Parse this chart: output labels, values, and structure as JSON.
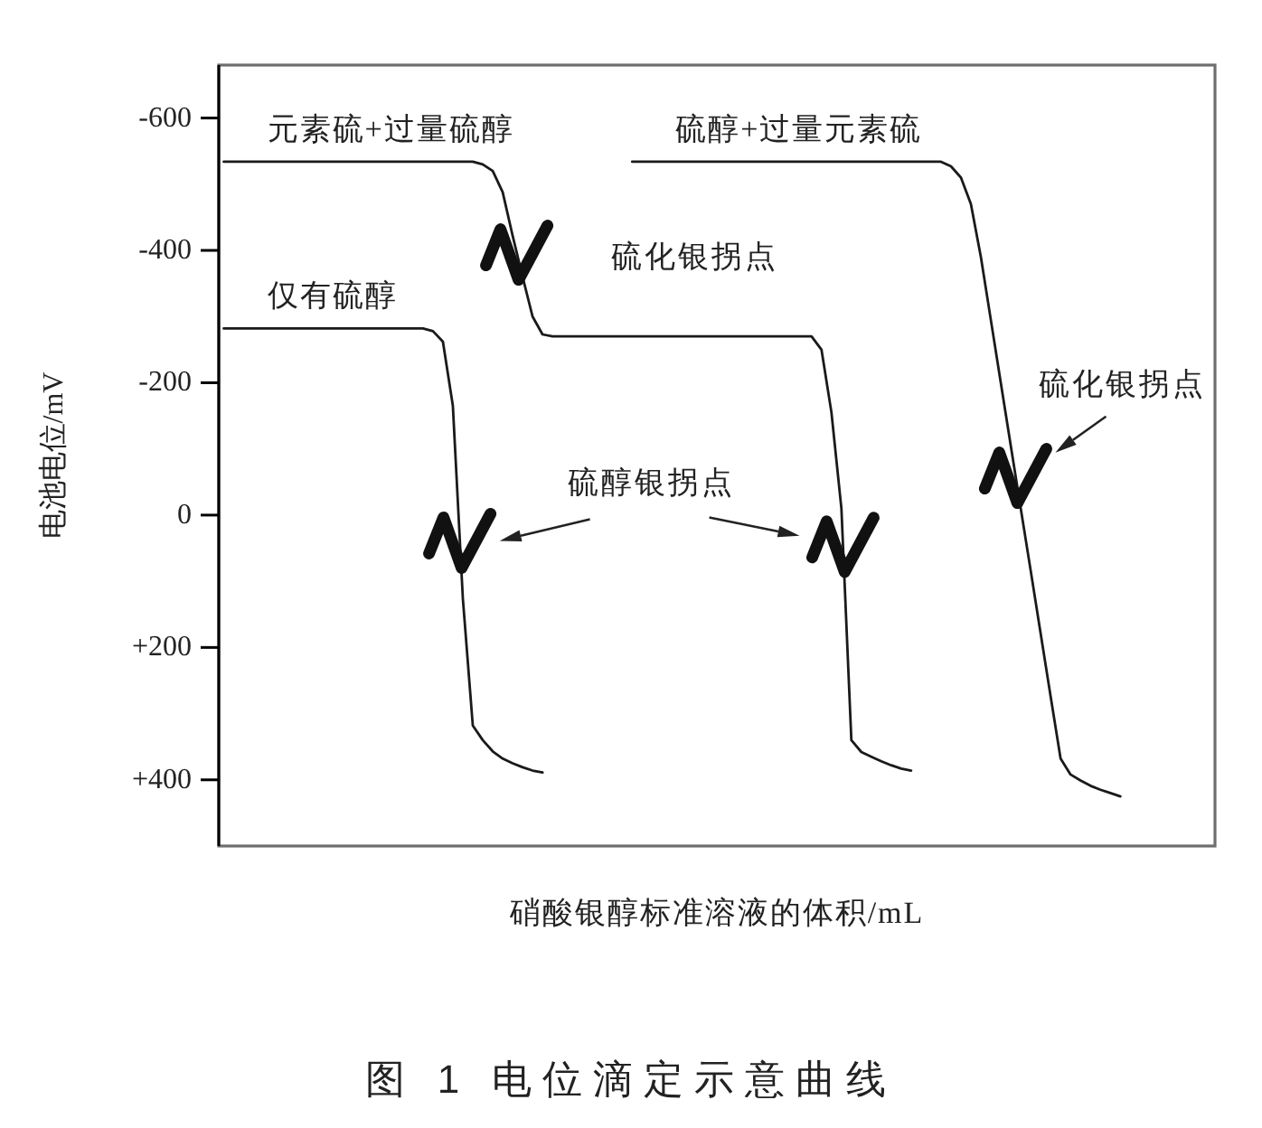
{
  "chart_data": {
    "type": "line",
    "title": "图 1 电位滴定示意曲线",
    "xlabel": "硝酸银醇标准溶液的体积/mL",
    "ylabel": "电池电位/mV",
    "categories": [
      null,
      null,
      null,
      null,
      null,
      null,
      null,
      null,
      null,
      null,
      null,
      null,
      null,
      null,
      null,
      null,
      null,
      null,
      null,
      null,
      null,
      null,
      null,
      null,
      null,
      null,
      null,
      null,
      null,
      null,
      null,
      null,
      null,
      null,
      null,
      null,
      null,
      null,
      null,
      null,
      null,
      null,
      null,
      null,
      null,
      null,
      null,
      null,
      null,
      null,
      null,
      null,
      null,
      null,
      null,
      null,
      null,
      null,
      null,
      null,
      null,
      null,
      null,
      null,
      null,
      null,
      null,
      null,
      null,
      null,
      null,
      null,
      null,
      null,
      null,
      null,
      null,
      null,
      null,
      null,
      null,
      null,
      null,
      null,
      null,
      null,
      null,
      null,
      null,
      null,
      null,
      null,
      null,
      null,
      null,
      null,
      null,
      null,
      null,
      null
    ],
    "series": [
      {
        "name": "仅有硫醇",
        "color": "#1a1a1a",
        "values": [
          -282,
          -282,
          -282,
          -282,
          -282,
          -282,
          -282,
          -282,
          -282,
          -282,
          -282,
          -282,
          -282,
          -282,
          -282,
          -282,
          -282,
          -282,
          -282,
          -282,
          -282,
          -278,
          -262,
          -165,
          126,
          318,
          340,
          357,
          368,
          375,
          381,
          386,
          389,
          null,
          null,
          null,
          null,
          null,
          null,
          null,
          null,
          null,
          null,
          null,
          null,
          null,
          null,
          null,
          null,
          null,
          null,
          null,
          null,
          null,
          null,
          null,
          null,
          null,
          null,
          null,
          null,
          null,
          null,
          null,
          null,
          null,
          null,
          null,
          null,
          null,
          null,
          null,
          null,
          null,
          null,
          null,
          null,
          null,
          null,
          null,
          null,
          null,
          null,
          null,
          null,
          null,
          null,
          null,
          null,
          null,
          null,
          null,
          null,
          null,
          null,
          null,
          null,
          null,
          null,
          null
        ]
      },
      {
        "name": "元素硫+过量硫醇",
        "color": "#1a1a1a",
        "values": [
          -534,
          -534,
          -534,
          -534,
          -534,
          -534,
          -534,
          -534,
          -534,
          -534,
          -534,
          -534,
          -534,
          -534,
          -534,
          -534,
          -534,
          -534,
          -534,
          -534,
          -534,
          -534,
          -534,
          -534,
          -534,
          -534,
          -530,
          -520,
          -488,
          -422,
          -360,
          -300,
          -273,
          -270,
          -270,
          -270,
          -270,
          -270,
          -270,
          -270,
          -270,
          -270,
          -270,
          -270,
          -270,
          -270,
          -270,
          -270,
          -270,
          -270,
          -270,
          -270,
          -270,
          -270,
          -270,
          -270,
          -270,
          -270,
          -270,
          -270,
          -250,
          -155,
          -10,
          340,
          358,
          365,
          372,
          378,
          383,
          386,
          null,
          null,
          null,
          null,
          null,
          null,
          null,
          null,
          null,
          null,
          null,
          null,
          null,
          null,
          null,
          null,
          null,
          null,
          null,
          null,
          null,
          null,
          null,
          null,
          null,
          null,
          null,
          null,
          null,
          null
        ]
      },
      {
        "name": "硫醇+过量元素硫",
        "color": "#1a1a1a",
        "values": [
          null,
          null,
          null,
          null,
          null,
          null,
          null,
          null,
          null,
          null,
          null,
          null,
          null,
          null,
          null,
          null,
          null,
          null,
          null,
          null,
          null,
          null,
          null,
          null,
          null,
          null,
          null,
          null,
          null,
          null,
          null,
          null,
          null,
          null,
          null,
          null,
          null,
          null,
          null,
          null,
          null,
          -534,
          -534,
          -534,
          -534,
          -534,
          -534,
          -534,
          -534,
          -534,
          -534,
          -534,
          -534,
          -534,
          -534,
          -534,
          -534,
          -534,
          -534,
          -534,
          -534,
          -534,
          -534,
          -534,
          -534,
          -534,
          -534,
          -534,
          -534,
          -534,
          -534,
          -534,
          -534,
          -527,
          -510,
          -470,
          -390,
          -295,
          -200,
          -105,
          -10,
          84,
          179,
          274,
          368,
          392,
          401,
          409,
          415,
          420,
          425,
          null,
          null,
          null,
          null,
          null,
          null,
          null,
          null,
          null
        ]
      }
    ],
    "ylim": [
      500,
      -680
    ],
    "yticks": [
      -600,
      -400,
      -200,
      0,
      {
        "value": 200,
        "label": "+200"
      },
      {
        "value": 400,
        "label": "+400"
      }
    ],
    "tick_labels": "y",
    "annotations": [
      "硫化银拐点",
      "硫化银拐点",
      "硫醇银拐点"
    ]
  }
}
